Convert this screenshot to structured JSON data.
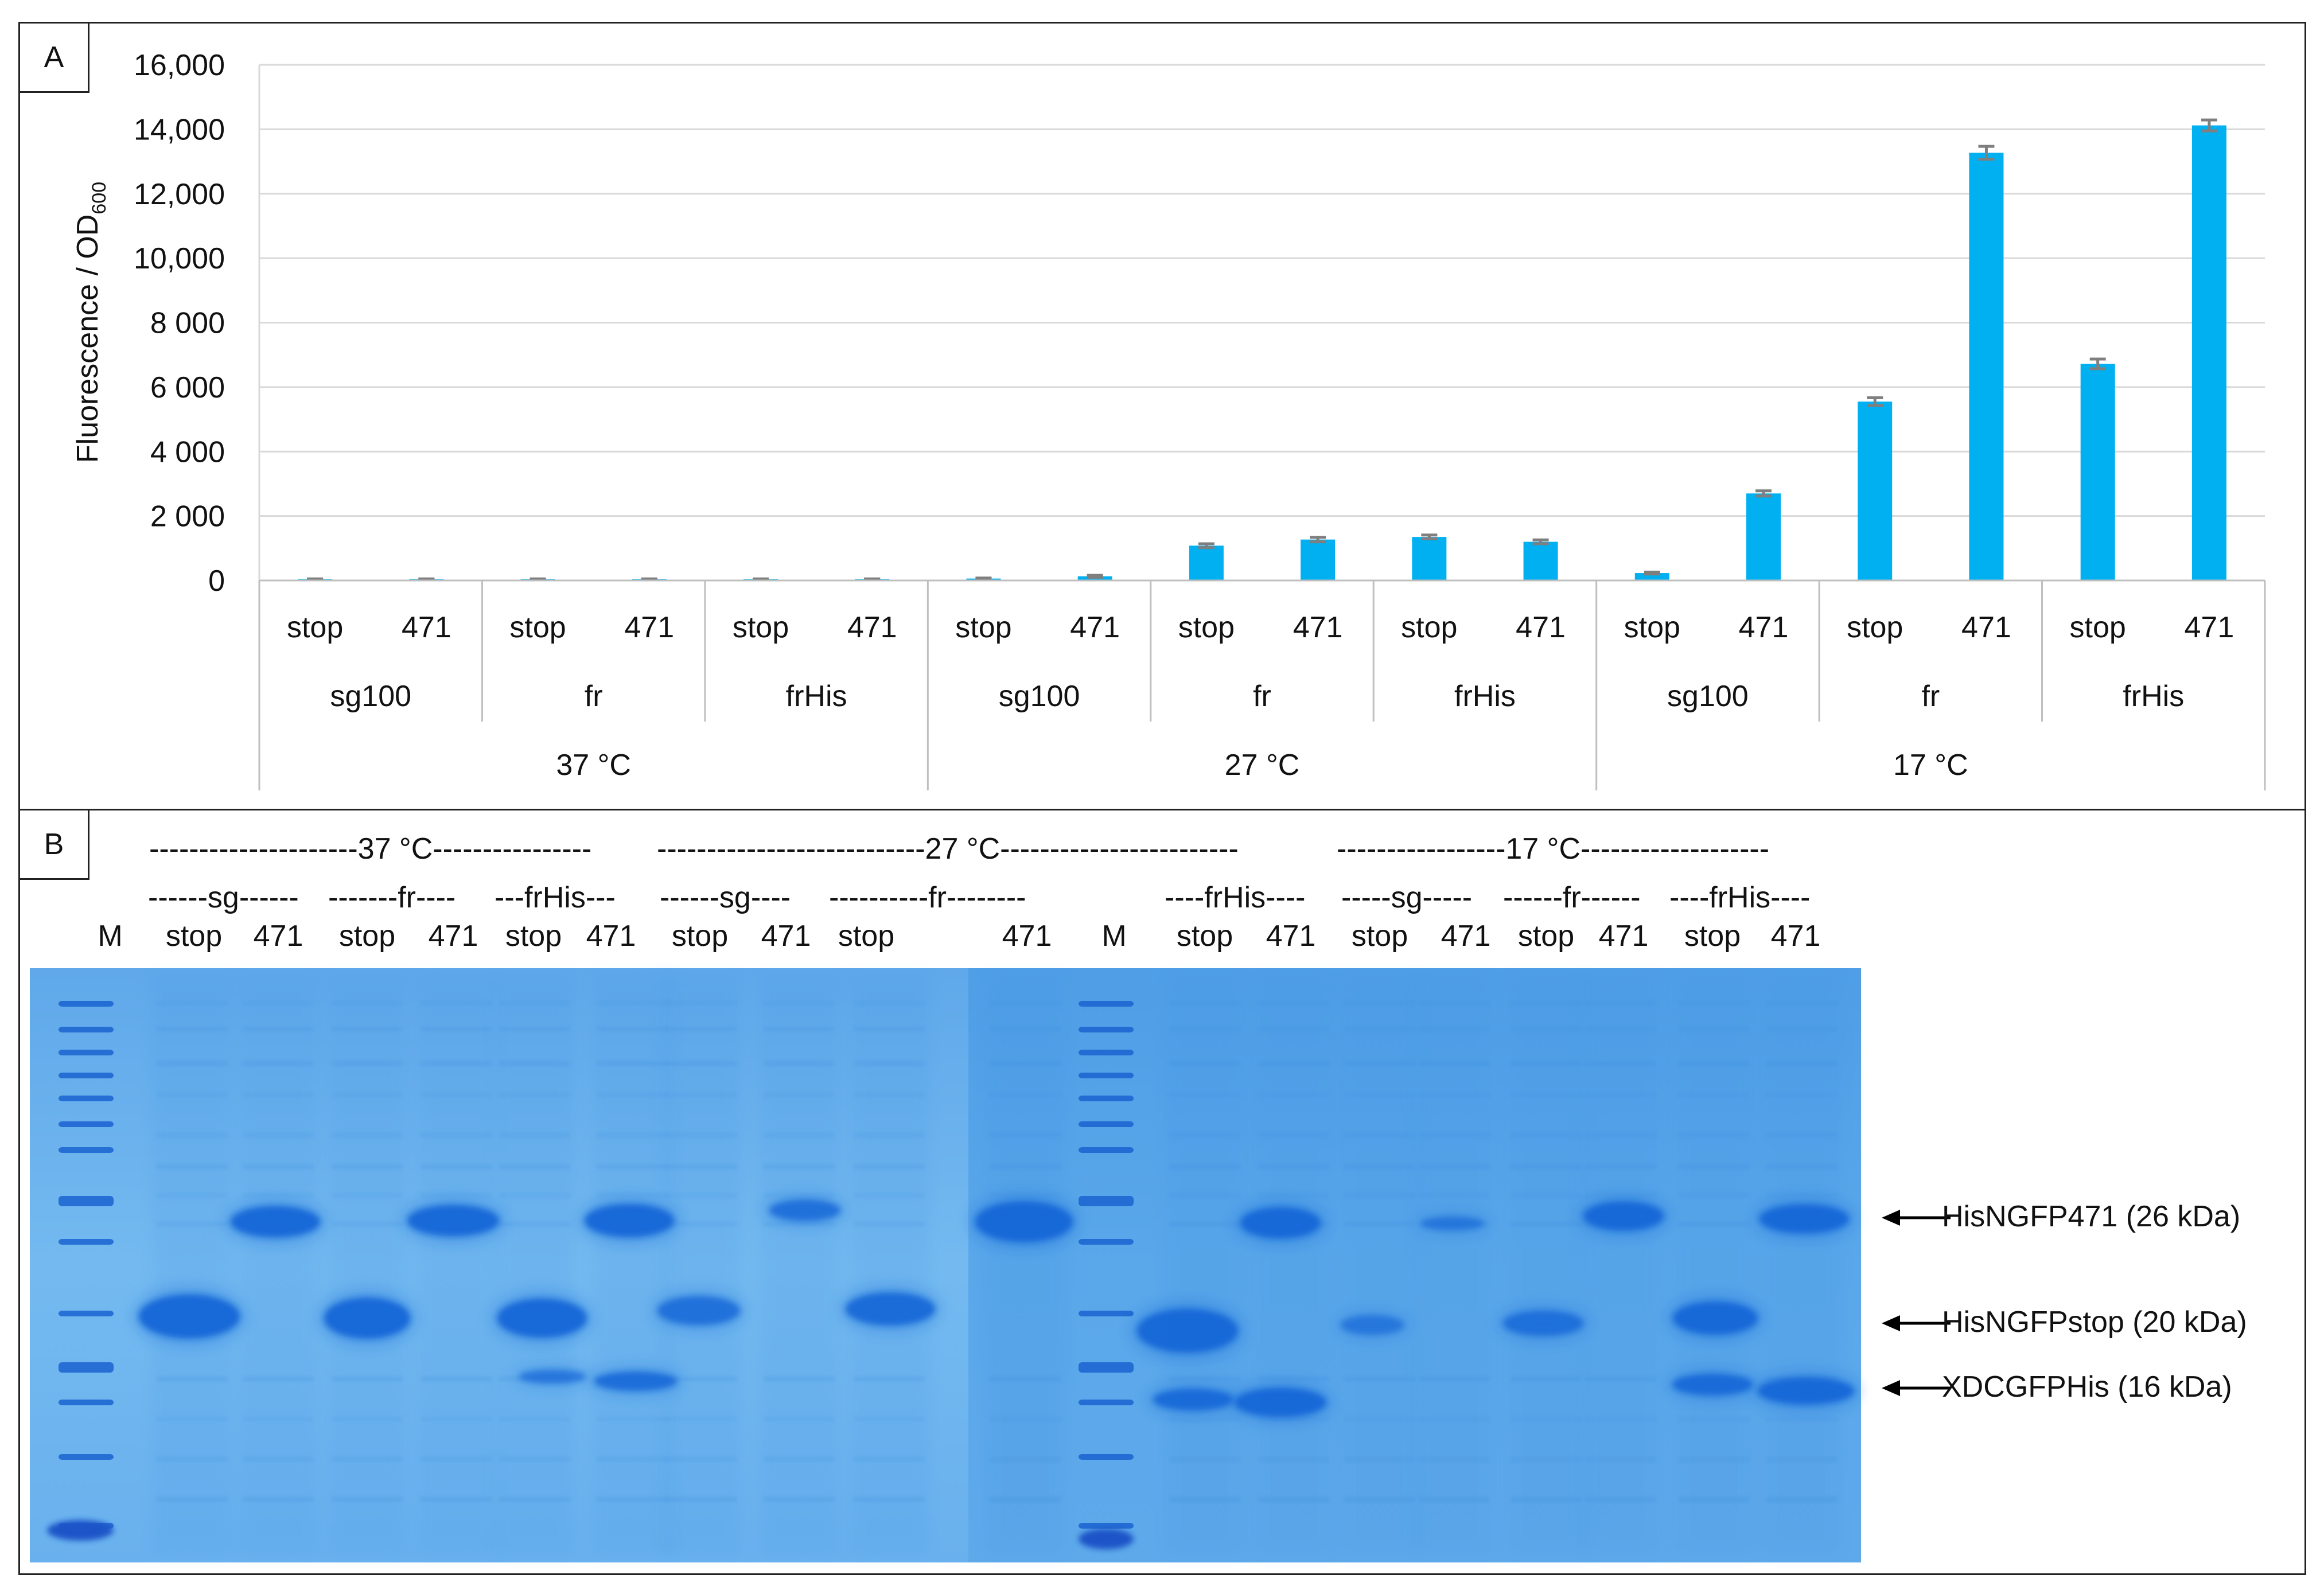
{
  "panel_a": {
    "label": "A"
  },
  "panel_b": {
    "label": "B"
  },
  "chart_data": {
    "type": "bar",
    "ylabel_main": "Fluorescence / OD",
    "ylabel_sub": "600",
    "ylim": [
      0,
      16000
    ],
    "yticks": [
      0,
      2000,
      4000,
      6000,
      8000,
      10000,
      12000,
      14000,
      16000
    ],
    "ytick_labels": [
      "0",
      "2 000",
      "4 000",
      "6 000",
      "8 000",
      "10,000",
      "12,000",
      "14,000",
      "16,000"
    ],
    "bar_color": "#00B0F0",
    "error_color": "#7f7f7f",
    "categories": [
      "stop",
      "471",
      "stop",
      "471",
      "stop",
      "471",
      "stop",
      "471",
      "stop",
      "471",
      "stop",
      "471",
      "stop",
      "471",
      "stop",
      "471",
      "stop",
      "471"
    ],
    "values": [
      40,
      40,
      40,
      40,
      40,
      40,
      60,
      130,
      1080,
      1270,
      1350,
      1200,
      230,
      2700,
      5550,
      13270,
      6720,
      14120
    ],
    "errors": [
      10,
      10,
      10,
      10,
      10,
      10,
      15,
      30,
      60,
      70,
      60,
      60,
      30,
      80,
      120,
      200,
      150,
      170
    ],
    "groups": [
      "sg100",
      "fr",
      "frHis",
      "sg100",
      "fr",
      "frHis",
      "sg100",
      "fr",
      "frHis"
    ],
    "temperatures": [
      "37 °C",
      "27 °C",
      "17 °C"
    ],
    "grid": true
  },
  "gel": {
    "temp_headers": [
      "---------------------37 °C----------------",
      "---------------------------27 °C------------------------",
      "-----------------17 °C-------------------"
    ],
    "construct_headers": [
      "------sg------",
      "-------fr----",
      "---frHis---",
      "------sg----",
      "----------fr--------",
      "----frHis----",
      "-----sg-----",
      "------fr------",
      "----frHis----"
    ],
    "lane_labels": [
      "M",
      "stop",
      "471",
      "stop",
      "471",
      "stop",
      "471",
      "stop",
      "471",
      "stop",
      "471",
      "M",
      "stop",
      "471",
      "stop",
      "471",
      "stop",
      "471",
      "stop",
      "471"
    ],
    "annotations": [
      "HisNGFP471 (26 kDa)",
      "HisNGFPstop (20 kDa)",
      "XDCGFPHis (16 kDa)"
    ],
    "gel_color": "#6FB6EE",
    "band_color": "#1668D8"
  }
}
